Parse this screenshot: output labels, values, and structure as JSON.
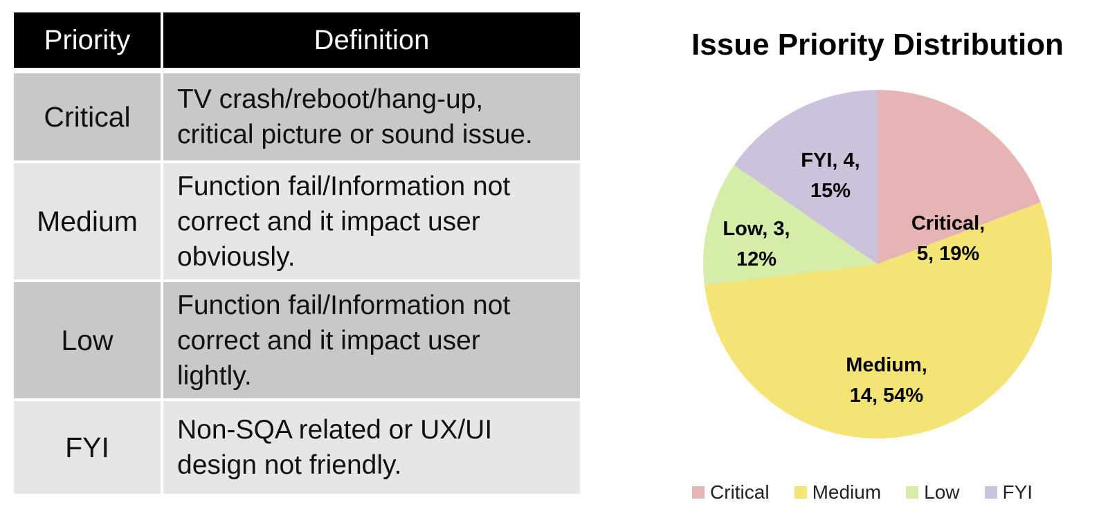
{
  "table": {
    "headers": {
      "priority": "Priority",
      "definition": "Definition"
    },
    "rows": [
      {
        "priority": "Critical",
        "definition": [
          "TV crash/reboot/hang-up,",
          "critical picture or sound issue."
        ]
      },
      {
        "priority": "Medium",
        "definition": [
          "Function fail/Information not",
          "correct and it impact user",
          "obviously."
        ]
      },
      {
        "priority": "Low",
        "definition": [
          "Function fail/Information not",
          "correct and it impact user",
          "lightly."
        ]
      },
      {
        "priority": "FYI",
        "definition": [
          "Non-SQA related or UX/UI",
          "design not friendly."
        ]
      }
    ]
  },
  "chart_data": {
    "type": "pie",
    "title": "Issue Priority Distribution",
    "slices": [
      {
        "name": "Critical",
        "value": 5,
        "percent": 19,
        "color": "#e6b4b4",
        "label": [
          "Critical,",
          "5, 19%"
        ]
      },
      {
        "name": "Medium",
        "value": 14,
        "percent": 54,
        "color": "#f4e476",
        "label": [
          "Medium,",
          "14, 54%"
        ]
      },
      {
        "name": "Low",
        "value": 3,
        "percent": 12,
        "color": "#d6edaa",
        "label": [
          "Low, 3,",
          "12%"
        ]
      },
      {
        "name": "FYI",
        "value": 4,
        "percent": 15,
        "color": "#cdc2dc",
        "label": [
          "FYI, 4,",
          "15%"
        ]
      }
    ],
    "legend_position": "bottom"
  }
}
